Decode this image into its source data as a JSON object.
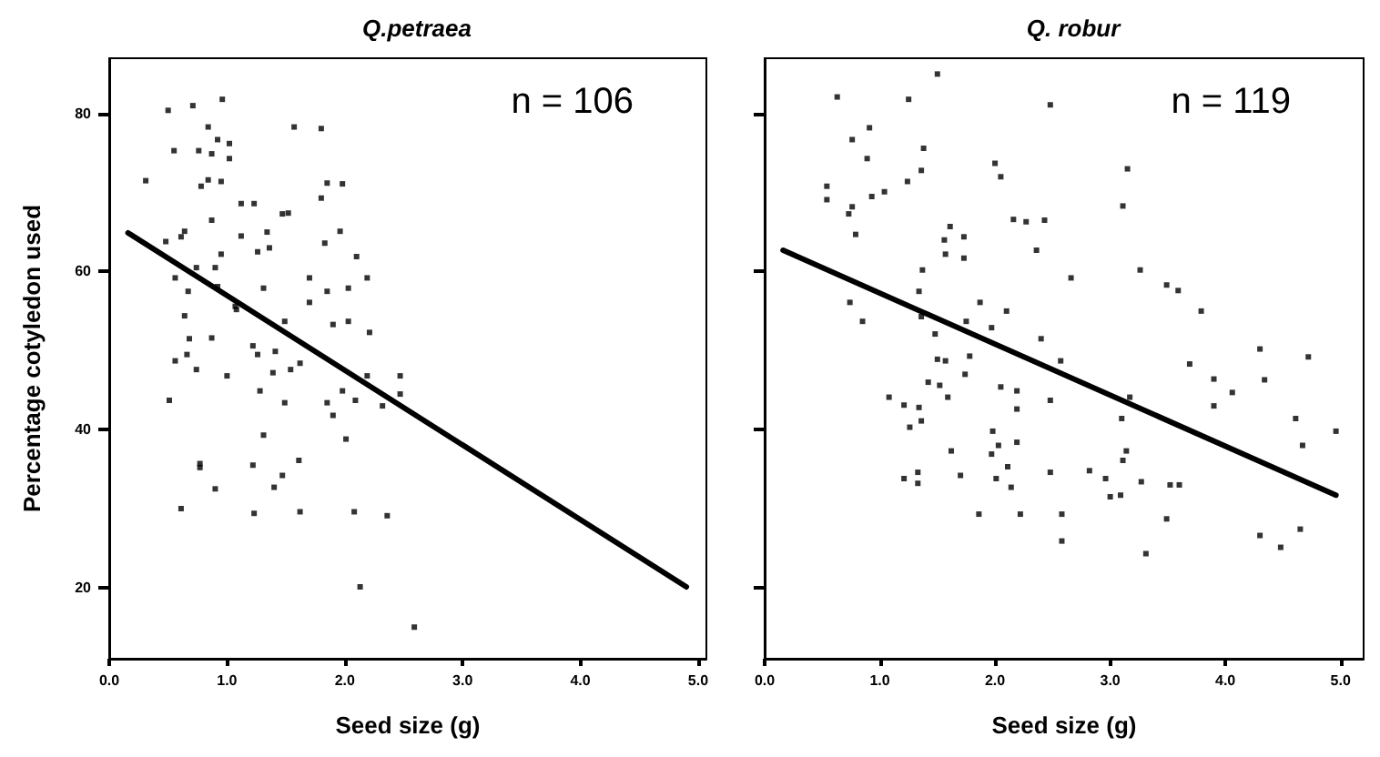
{
  "chart_data": [
    {
      "type": "scatter",
      "title": "Q.petraea",
      "xlabel": "Seed size (g)",
      "ylabel": "Percentage cotyledon used",
      "annotations": [
        "n = 106"
      ],
      "xlim": [
        0,
        5.07
      ],
      "ylim": [
        11,
        87
      ],
      "xticks": [
        {
          "value": 0,
          "label": "0.0"
        },
        {
          "value": 1,
          "label": "1.0"
        },
        {
          "value": 2,
          "label": "2.0"
        },
        {
          "value": 3,
          "label": "3.0"
        },
        {
          "value": 4,
          "label": "4.0"
        },
        {
          "value": 5,
          "label": "5.0"
        }
      ],
      "yticks": [
        20,
        40,
        60,
        80
      ],
      "grid": false,
      "series": [
        {
          "marker": "square",
          "color": "#000000",
          "x": [
            0.5,
            0.71,
            0.96,
            0.84,
            0.92,
            1.02,
            0.55,
            0.76,
            0.87,
            1.02,
            0.31,
            0.78,
            0.84,
            0.95,
            1.85,
            1.98,
            1.8,
            1.57,
            1.8,
            1.12,
            1.23,
            1.52,
            1.47,
            0.87,
            0.64,
            0.61,
            0.48,
            1.12,
            1.34,
            1.36,
            1.26,
            0.95,
            0.9,
            0.74,
            1.96,
            1.83,
            2.1,
            0.67,
            0.56,
            0.92,
            1.07,
            1.7,
            1.85,
            2.03,
            2.19,
            1.31,
            1.7,
            0.64,
            1.08,
            1.49,
            2.03,
            1.9,
            2.21,
            0.68,
            0.87,
            1.22,
            1.26,
            1.41,
            0.66,
            0.56,
            0.74,
            1.0,
            1.39,
            1.54,
            1.62,
            2.47,
            2.19,
            0.51,
            1.28,
            1.49,
            1.85,
            1.98,
            2.09,
            2.32,
            2.47,
            1.9,
            1.31,
            2.01,
            0.77,
            0.77,
            1.22,
            1.61,
            1.47,
            1.4,
            0.9,
            0.61,
            1.23,
            1.62,
            2.08,
            2.36,
            2.13,
            2.59
          ],
          "values": [
            80.4,
            81.0,
            81.8,
            78.3,
            76.7,
            76.2,
            75.3,
            75.3,
            74.9,
            74.3,
            71.5,
            70.8,
            71.6,
            71.4,
            71.2,
            71.1,
            69.3,
            78.3,
            78.1,
            68.6,
            68.6,
            67.4,
            67.3,
            66.5,
            65.1,
            64.4,
            63.8,
            64.5,
            65.0,
            63.0,
            62.5,
            62.2,
            60.5,
            60.5,
            65.1,
            63.6,
            61.9,
            57.5,
            59.2,
            58.1,
            55.6,
            59.2,
            57.5,
            57.9,
            59.2,
            57.9,
            56.1,
            54.4,
            55.2,
            53.7,
            53.7,
            53.3,
            52.3,
            51.5,
            51.6,
            50.6,
            49.5,
            49.9,
            49.5,
            48.7,
            47.6,
            46.8,
            47.2,
            47.6,
            48.4,
            46.8,
            46.8,
            43.7,
            44.9,
            43.4,
            43.4,
            44.9,
            43.7,
            43.0,
            44.5,
            41.8,
            39.3,
            38.8,
            35.7,
            35.2,
            35.5,
            36.1,
            34.2,
            32.7,
            32.5,
            30.0,
            29.4,
            29.6,
            29.6,
            29.1,
            20.1,
            15.0
          ]
        },
        {
          "type": "line",
          "marker": "none",
          "line_style": "solid",
          "color": "#000000",
          "x": [
            0.16,
            4.9
          ],
          "values": [
            64.9,
            20.1
          ]
        }
      ]
    },
    {
      "type": "scatter",
      "title": "Q. robur",
      "xlabel": "Seed size (g)",
      "annotations": [
        "n = 119"
      ],
      "xlim": [
        0,
        5.2
      ],
      "ylim": [
        11,
        87
      ],
      "xticks": [
        {
          "value": 0,
          "label": "0.0"
        },
        {
          "value": 1,
          "label": "1.0"
        },
        {
          "value": 2,
          "label": "2.0"
        },
        {
          "value": 3,
          "label": "3.0"
        },
        {
          "value": 4,
          "label": "4.0"
        },
        {
          "value": 5,
          "label": "5.0"
        }
      ],
      "yticks": [
        20,
        40,
        60,
        80
      ],
      "tick_labels": "x",
      "grid": false,
      "series": [
        {
          "marker": "square",
          "color": "#000000",
          "x": [
            1.5,
            0.63,
            1.25,
            2.48,
            0.91,
            0.76,
            1.38,
            0.89,
            2.0,
            2.05,
            1.36,
            1.24,
            0.54,
            0.54,
            0.93,
            1.04,
            0.76,
            0.73,
            0.79,
            2.16,
            2.27,
            2.43,
            1.61,
            1.73,
            1.56,
            1.57,
            1.73,
            2.36,
            1.37,
            1.34,
            0.74,
            0.85,
            1.87,
            2.1,
            1.75,
            1.97,
            1.36,
            1.48,
            2.4,
            1.5,
            1.57,
            1.42,
            1.52,
            1.74,
            1.78,
            1.08,
            1.21,
            1.34,
            1.59,
            2.05,
            2.19,
            2.19,
            2.48,
            1.26,
            1.36,
            1.98,
            1.97,
            2.19,
            2.03,
            2.11,
            2.01,
            2.14,
            1.62,
            1.21,
            1.33,
            1.33,
            1.7,
            2.48,
            1.86,
            2.22,
            3.15,
            3.11,
            2.66,
            3.26,
            3.49,
            3.59,
            3.79,
            2.57,
            3.69,
            4.3,
            4.72,
            3.9,
            4.06,
            4.34,
            3.17,
            3.1,
            3.9,
            4.61,
            4.96,
            4.67,
            3.14,
            3.11,
            2.82,
            2.96,
            3.27,
            3.52,
            3.6,
            3.0,
            3.09,
            2.58,
            2.58,
            3.49,
            3.31,
            4.3,
            4.48,
            4.65
          ],
          "values": [
            85.0,
            82.1,
            81.8,
            81.1,
            78.2,
            76.7,
            75.6,
            74.3,
            73.7,
            72.0,
            72.8,
            71.4,
            70.8,
            69.1,
            69.5,
            70.1,
            68.2,
            67.3,
            64.7,
            66.6,
            66.3,
            66.5,
            65.7,
            64.4,
            64.0,
            62.2,
            61.7,
            62.7,
            60.2,
            57.5,
            56.1,
            53.7,
            56.1,
            55.0,
            53.7,
            52.9,
            54.3,
            52.1,
            51.5,
            48.9,
            48.7,
            46.0,
            45.6,
            47.0,
            49.3,
            44.1,
            43.1,
            42.8,
            44.1,
            45.4,
            44.9,
            42.6,
            43.7,
            40.3,
            41.1,
            39.8,
            36.9,
            38.4,
            38.0,
            35.3,
            33.8,
            32.7,
            37.3,
            33.8,
            34.6,
            33.2,
            34.2,
            34.6,
            29.3,
            29.3,
            73.0,
            68.3,
            59.2,
            60.2,
            58.3,
            57.6,
            55.0,
            48.7,
            48.3,
            50.2,
            49.2,
            46.4,
            44.7,
            46.3,
            44.1,
            41.4,
            43.0,
            41.4,
            39.8,
            38.0,
            37.3,
            36.1,
            34.8,
            33.8,
            33.4,
            33.0,
            33.0,
            31.5,
            31.7,
            29.3,
            25.9,
            28.7,
            24.3,
            26.6,
            25.1,
            27.4
          ]
        },
        {
          "type": "line",
          "marker": "none",
          "line_style": "solid",
          "color": "#000000",
          "x": [
            0.16,
            4.96
          ],
          "values": [
            62.7,
            31.7
          ]
        }
      ]
    }
  ]
}
